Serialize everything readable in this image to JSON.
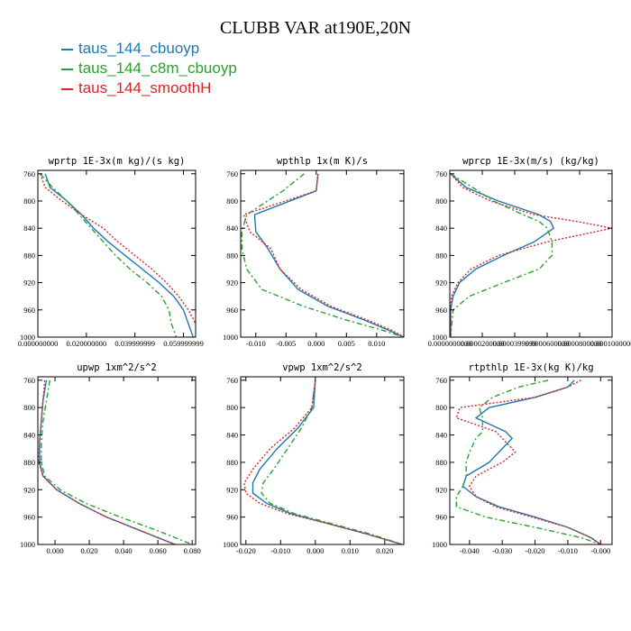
{
  "title": "CLUBB VAR at190E,20N",
  "legend": [
    {
      "label": "taus_144_cbuoyp",
      "color": "#1f77b4",
      "dash": ""
    },
    {
      "label": "taus_144_c8m_cbuoyp",
      "color": "#2ca02c",
      "dash": "6 3 2 3"
    },
    {
      "label": "taus_144_smoothH",
      "color": "#d62728",
      "dash": "2 2"
    }
  ],
  "chart_data": [
    {
      "type": "line",
      "title": "wprtp  1E-3x(m kg)/(s kg)",
      "xlim": [
        0,
        0.065
      ],
      "xticks": [
        0,
        0.02,
        0.04,
        0.06
      ],
      "xtick_labels": [
        "0.000000000",
        "0.020000000",
        "0.039999999",
        "0.059999999"
      ],
      "ylim": [
        1000,
        755
      ],
      "yticks": [
        760,
        800,
        840,
        880,
        920,
        960,
        1000
      ],
      "y": [
        760,
        780,
        800,
        820,
        840,
        860,
        880,
        900,
        920,
        940,
        960,
        980,
        1000
      ],
      "series": [
        {
          "name": "taus_144_cbuoyp",
          "x": [
            0.003,
            0.005,
            0.012,
            0.018,
            0.023,
            0.029,
            0.036,
            0.043,
            0.05,
            0.056,
            0.06,
            0.062,
            0.064
          ]
        },
        {
          "name": "taus_144_c8m_cbuoyp",
          "x": [
            0.001,
            0.006,
            0.012,
            0.017,
            0.022,
            0.027,
            0.032,
            0.038,
            0.045,
            0.051,
            0.054,
            0.055,
            0.057
          ]
        },
        {
          "name": "taus_144_smoothH",
          "x": [
            0.001,
            0.003,
            0.01,
            0.018,
            0.027,
            0.033,
            0.04,
            0.047,
            0.053,
            0.058,
            0.062,
            0.065,
            0.067
          ]
        }
      ]
    },
    {
      "type": "line",
      "title": "wpthlp  1x(m K)/s",
      "xlim": [
        -0.0125,
        0.0145
      ],
      "xticks": [
        -0.01,
        -0.005,
        0,
        0.005,
        0.01
      ],
      "xtick_labels": [
        "-0.010",
        "-0.005",
        "0.000",
        "0.005",
        "0.010"
      ],
      "ylim": [
        1000,
        755
      ],
      "yticks": [
        760,
        800,
        840,
        880,
        920,
        960,
        1000
      ],
      "y": [
        760,
        785,
        820,
        845,
        870,
        900,
        930,
        955,
        975,
        990,
        1000
      ],
      "series": [
        {
          "name": "taus_144_cbuoyp",
          "x": [
            0.0003,
            0.0,
            -0.0102,
            -0.01,
            -0.008,
            -0.006,
            -0.003,
            0.002,
            0.008,
            0.012,
            0.0145
          ]
        },
        {
          "name": "taus_144_c8m_cbuoyp",
          "x": [
            -0.002,
            -0.0055,
            -0.0115,
            -0.0123,
            -0.0123,
            -0.0115,
            -0.009,
            -0.002,
            0.005,
            0.011,
            0.0145
          ]
        },
        {
          "name": "taus_144_smoothH",
          "x": [
            0.0003,
            0.0,
            -0.012,
            -0.011,
            -0.0075,
            -0.006,
            -0.0025,
            0.0025,
            0.0085,
            0.0125,
            0.0145
          ]
        }
      ]
    },
    {
      "type": "line",
      "title": "wprcp  1E-3x(m/s) (kg/kg)",
      "xlim": [
        0,
        0.0001
      ],
      "xticks": [
        0,
        2e-05,
        4e-05,
        6e-05,
        8e-05,
        0.0001
      ],
      "xtick_labels": [
        "0.0000000000",
        "0.0000200000",
        "0.0000399999",
        "0.0000600000",
        "0.0000800000",
        "0.0001000000"
      ],
      "ylim": [
        1000,
        755
      ],
      "yticks": [
        760,
        800,
        840,
        880,
        920,
        960,
        1000
      ],
      "y": [
        760,
        780,
        800,
        820,
        830,
        840,
        860,
        880,
        900,
        920,
        940,
        960,
        1000
      ],
      "series": [
        {
          "name": "taus_144_cbuoyp",
          "x": [
            5e-07,
            1e-05,
            3e-05,
            5.5e-05,
            6.2e-05,
            6.4e-05,
            5.2e-05,
            3.3e-05,
            1.6e-05,
            6e-06,
            2e-06,
            5e-07,
            5e-07
          ]
        },
        {
          "name": "taus_144_c8m_cbuoyp",
          "x": [
            5e-07,
            1.4e-05,
            2.7e-05,
            4.5e-05,
            5.5e-05,
            6e-05,
            6.3e-05,
            6.3e-05,
            5.5e-05,
            3.3e-05,
            1.2e-05,
            2e-06,
            5e-07
          ]
        },
        {
          "name": "taus_144_smoothH",
          "x": [
            5e-07,
            8e-06,
            2.5e-05,
            5.2e-05,
            7.8e-05,
            0.0001,
            6e-05,
            3e-05,
            1.3e-05,
            5e-06,
            1e-06,
            5e-07,
            5e-07
          ]
        }
      ]
    },
    {
      "type": "line",
      "title": "upwp  1xm^2/s^2",
      "xlim": [
        -0.01,
        0.082
      ],
      "xticks": [
        0,
        0.02,
        0.04,
        0.06,
        0.08
      ],
      "xtick_labels": [
        "0.000",
        "0.020",
        "0.040",
        "0.060",
        "0.080"
      ],
      "ylim": [
        1000,
        755
      ],
      "yticks": [
        760,
        800,
        840,
        880,
        920,
        960,
        1000
      ],
      "y": [
        760,
        790,
        820,
        850,
        880,
        900,
        920,
        940,
        960,
        980,
        1000
      ],
      "series": [
        {
          "name": "taus_144_cbuoyp",
          "x": [
            -0.005,
            -0.007,
            -0.008,
            -0.009,
            -0.009,
            -0.007,
            0.001,
            0.014,
            0.03,
            0.05,
            0.07
          ]
        },
        {
          "name": "taus_144_c8m_cbuoyp",
          "x": [
            -0.003,
            -0.005,
            -0.007,
            -0.008,
            -0.008,
            -0.006,
            0.003,
            0.018,
            0.038,
            0.06,
            0.08
          ]
        },
        {
          "name": "taus_144_smoothH",
          "x": [
            -0.006,
            -0.007,
            -0.008,
            -0.009,
            -0.0095,
            -0.007,
            0.001,
            0.014,
            0.03,
            0.05,
            0.07
          ]
        }
      ]
    },
    {
      "type": "line",
      "title": "vpwp  1xm^2/s^2",
      "xlim": [
        -0.0215,
        0.0255
      ],
      "xticks": [
        -0.02,
        -0.01,
        0,
        0.01,
        0.02
      ],
      "xtick_labels": [
        "-0.020",
        "-0.010",
        "0.000",
        "0.010",
        "0.020"
      ],
      "ylim": [
        1000,
        755
      ],
      "yticks": [
        760,
        800,
        840,
        880,
        920,
        960,
        1000
      ],
      "y": [
        760,
        800,
        830,
        860,
        890,
        910,
        925,
        940,
        955,
        970,
        985,
        1000
      ],
      "series": [
        {
          "name": "taus_144_cbuoyp",
          "x": [
            0.0,
            -0.0005,
            -0.005,
            -0.011,
            -0.016,
            -0.018,
            -0.018,
            -0.014,
            -0.007,
            0.004,
            0.015,
            0.025
          ]
        },
        {
          "name": "taus_144_c8m_cbuoyp",
          "x": [
            0.0,
            -0.001,
            -0.004,
            -0.008,
            -0.012,
            -0.015,
            -0.0155,
            -0.013,
            -0.006,
            0.005,
            0.016,
            0.025
          ]
        },
        {
          "name": "taus_144_smoothH",
          "x": [
            0.0,
            -0.001,
            -0.006,
            -0.013,
            -0.018,
            -0.0205,
            -0.02,
            -0.016,
            -0.008,
            0.004,
            0.015,
            0.025
          ]
        }
      ]
    },
    {
      "type": "line",
      "title": "rtpthlp  1E-3x(kg K)/kg",
      "xlim": [
        -0.046,
        0.0035
      ],
      "xticks": [
        -0.04,
        -0.03,
        -0.02,
        -0.01,
        0
      ],
      "xtick_labels": [
        "-0.040",
        "-0.030",
        "-0.020",
        "-0.010",
        "-0.000"
      ],
      "ylim": [
        1000,
        755
      ],
      "yticks": [
        760,
        800,
        840,
        880,
        920,
        960,
        1000
      ],
      "y": [
        760,
        770,
        785,
        800,
        815,
        835,
        845,
        865,
        880,
        900,
        915,
        930,
        945,
        960,
        975,
        990,
        1000
      ],
      "series": [
        {
          "name": "taus_144_cbuoyp",
          "x": [
            -0.008,
            -0.01,
            -0.02,
            -0.034,
            -0.038,
            -0.029,
            -0.027,
            -0.031,
            -0.034,
            -0.041,
            -0.042,
            -0.038,
            -0.031,
            -0.02,
            -0.01,
            -0.003,
            0.0
          ]
        },
        {
          "name": "taus_144_c8m_cbuoyp",
          "x": [
            -0.016,
            -0.025,
            -0.033,
            -0.037,
            -0.036,
            -0.036,
            -0.038,
            -0.04,
            -0.041,
            -0.041,
            -0.042,
            -0.044,
            -0.044,
            -0.035,
            -0.02,
            -0.006,
            0.0
          ]
        },
        {
          "name": "taus_144_smoothH",
          "x": [
            -0.006,
            -0.01,
            -0.02,
            -0.043,
            -0.044,
            -0.032,
            -0.03,
            -0.026,
            -0.03,
            -0.038,
            -0.04,
            -0.038,
            -0.032,
            -0.021,
            -0.01,
            -0.003,
            0.0
          ]
        }
      ]
    }
  ]
}
